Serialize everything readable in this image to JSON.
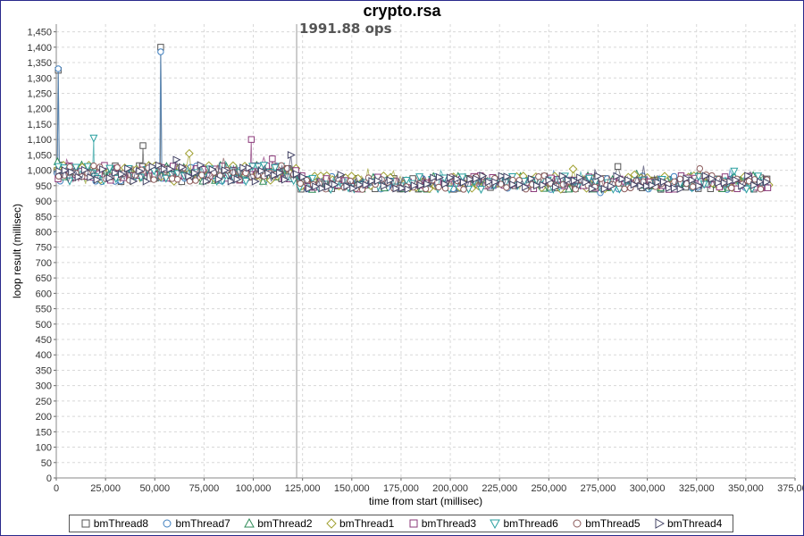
{
  "chart_data": {
    "type": "scatter",
    "title": "crypto.rsa",
    "xlabel": "time from start (millisec)",
    "ylabel": "loop result (millisec)",
    "xlim": [
      0,
      375000
    ],
    "ylim": [
      0,
      1475
    ],
    "x_ticks": [
      "0",
      "25,000",
      "50,000",
      "75,000",
      "100,000",
      "125,000",
      "150,000",
      "175,000",
      "200,000",
      "225,000",
      "250,000",
      "275,000",
      "300,000",
      "325,000",
      "350,000",
      "375,000"
    ],
    "y_ticks": [
      "0",
      "50",
      "100",
      "150",
      "200",
      "250",
      "300",
      "350",
      "400",
      "450",
      "500",
      "550",
      "600",
      "650",
      "700",
      "750",
      "800",
      "850",
      "900",
      "950",
      "1,000",
      "1,050",
      "1,100",
      "1,150",
      "1,200",
      "1,250",
      "1,300",
      "1,350",
      "1,400",
      "1,450"
    ],
    "grid": true,
    "legend_position": "bottom",
    "annotation": {
      "x": 122000,
      "label": "1991.88 ops"
    },
    "series": [
      {
        "name": "bmThread8",
        "marker": "square",
        "color": "#555555"
      },
      {
        "name": "bmThread7",
        "marker": "circle",
        "color": "#3f7fbf"
      },
      {
        "name": "bmThread2",
        "marker": "triangle-up",
        "color": "#2e8b57"
      },
      {
        "name": "bmThread1",
        "marker": "diamond",
        "color": "#a0a030"
      },
      {
        "name": "bmThread3",
        "marker": "square",
        "color": "#8b3a7a"
      },
      {
        "name": "bmThread6",
        "marker": "triangle-down",
        "color": "#2aa0a0"
      },
      {
        "name": "bmThread5",
        "marker": "circle",
        "color": "#8b5a5a"
      },
      {
        "name": "bmThread4",
        "marker": "triangle-right",
        "color": "#444466"
      }
    ],
    "phase_values": {
      "warmup_end": 122000,
      "warmup_mean": 990,
      "steady_mean": 960,
      "end_x": 362000,
      "spikes": [
        {
          "series": "bmThread8",
          "x": 1000,
          "y": 1325
        },
        {
          "series": "bmThread7",
          "x": 1000,
          "y": 1330
        },
        {
          "series": "bmThread8",
          "x": 53000,
          "y": 1400
        },
        {
          "series": "bmThread7",
          "x": 53000,
          "y": 1385
        },
        {
          "series": "bmThread6",
          "x": 19000,
          "y": 1105
        },
        {
          "series": "bmThread8",
          "x": 44000,
          "y": 1080
        },
        {
          "series": "bmThread3",
          "x": 99000,
          "y": 1100
        }
      ]
    }
  }
}
